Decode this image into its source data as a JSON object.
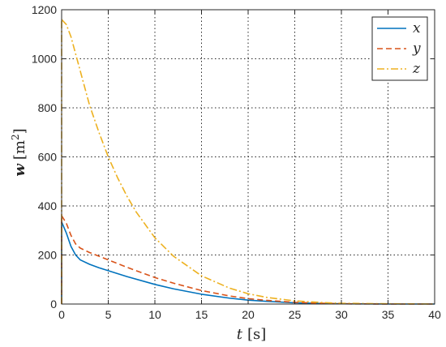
{
  "chart_data": {
    "type": "line",
    "title": "",
    "xlabel": {
      "symbol": "t",
      "unit": "[s]"
    },
    "ylabel": {
      "symbol": "w",
      "unit_open": "[m",
      "unit_sup": "2",
      "unit_close": "]"
    },
    "xlim": [
      0,
      40
    ],
    "ylim": [
      0,
      1200
    ],
    "xticks": [
      0,
      5,
      10,
      15,
      20,
      25,
      30,
      35,
      40
    ],
    "yticks": [
      0,
      200,
      400,
      600,
      800,
      1000,
      1200
    ],
    "xtick_labels": [
      "0",
      "5",
      "10",
      "15",
      "20",
      "25",
      "30",
      "35",
      "40"
    ],
    "ytick_labels": [
      "0",
      "200",
      "400",
      "600",
      "800",
      "1000",
      "1200"
    ],
    "grid": true,
    "legend_position": "top-right",
    "series": [
      {
        "name": "x",
        "color": "#0072bd",
        "dash": "solid",
        "x": [
          0,
          0.5,
          1,
          1.5,
          2,
          3,
          4,
          5,
          7,
          10,
          12,
          15,
          18,
          20,
          22,
          25,
          28,
          30,
          35,
          40
        ],
        "y": [
          335,
          290,
          235,
          200,
          180,
          162,
          148,
          136,
          112,
          80,
          62,
          40,
          24,
          16,
          11,
          5,
          2,
          1,
          0,
          0
        ]
      },
      {
        "name": "y",
        "color": "#d95319",
        "dash": "dashed",
        "x": [
          0,
          0.5,
          1,
          1.5,
          2,
          3,
          4,
          5,
          7,
          10,
          12,
          15,
          18,
          20,
          22,
          25,
          28,
          30,
          35,
          40
        ],
        "y": [
          360,
          330,
          280,
          245,
          228,
          210,
          195,
          180,
          150,
          108,
          85,
          55,
          33,
          22,
          15,
          7,
          3,
          1,
          0,
          0
        ]
      },
      {
        "name": "z",
        "color": "#edb120",
        "dash": "dashdot",
        "x": [
          0,
          0.5,
          1,
          1.5,
          2,
          2.5,
          3,
          4,
          5,
          6,
          7,
          8,
          10,
          12,
          15,
          18,
          20,
          22,
          25,
          28,
          30,
          35,
          40
        ],
        "y": [
          1160,
          1140,
          1090,
          1020,
          950,
          880,
          810,
          700,
          600,
          515,
          440,
          375,
          270,
          195,
          115,
          65,
          42,
          27,
          13,
          6,
          3,
          1,
          0
        ]
      }
    ]
  }
}
